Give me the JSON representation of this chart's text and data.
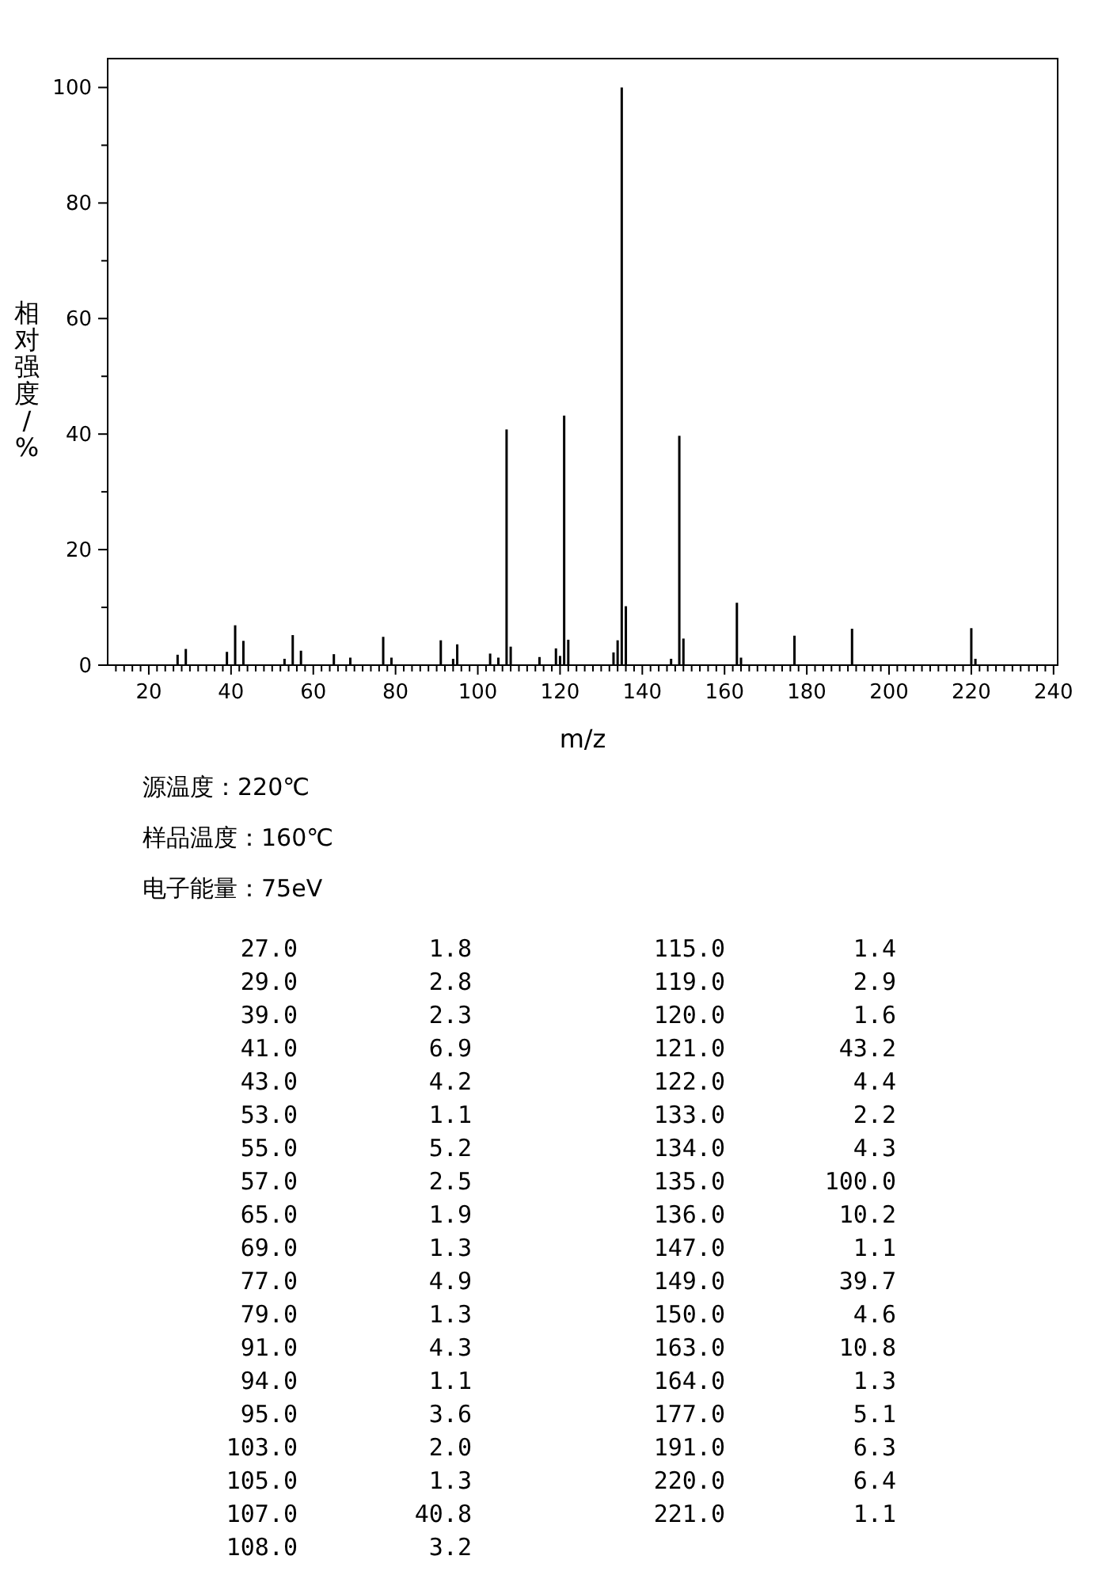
{
  "chart_data": [
    {
      "type": "bar",
      "color": "#000000",
      "xlabel": "m/z",
      "ylabel": "相对强度/%",
      "x": [
        27,
        29,
        39,
        41,
        43,
        53,
        55,
        57,
        65,
        69,
        77,
        79,
        91,
        94,
        95,
        103,
        105,
        107,
        108,
        115,
        119,
        120,
        121,
        122,
        133,
        134,
        135,
        136,
        147,
        149,
        150,
        163,
        164,
        177,
        191,
        220,
        221
      ],
      "values": [
        1.8,
        2.8,
        2.3,
        6.9,
        4.2,
        1.1,
        5.2,
        2.5,
        1.9,
        1.3,
        4.9,
        1.3,
        4.3,
        1.1,
        3.6,
        2.0,
        1.3,
        40.8,
        3.2,
        1.4,
        2.9,
        1.6,
        43.2,
        4.4,
        2.2,
        4.3,
        100.0,
        10.2,
        1.1,
        39.7,
        4.6,
        10.8,
        1.3,
        5.1,
        6.3,
        6.4,
        1.1
      ],
      "xlim": [
        10,
        241
      ],
      "ylim": [
        0,
        105
      ],
      "xticks": [
        {
          "value": 12,
          "label": null
        },
        {
          "value": 14,
          "label": null
        },
        {
          "value": 16,
          "label": null
        },
        {
          "value": 18,
          "label": null
        },
        20,
        {
          "value": 22,
          "label": null
        },
        {
          "value": 24,
          "label": null
        },
        {
          "value": 26,
          "label": null
        },
        {
          "value": 28,
          "label": null
        },
        {
          "value": 30,
          "label": null
        },
        {
          "value": 32,
          "label": null
        },
        {
          "value": 34,
          "label": null
        },
        {
          "value": 36,
          "label": null
        },
        {
          "value": 38,
          "label": null
        },
        40,
        {
          "value": 42,
          "label": null
        },
        {
          "value": 44,
          "label": null
        },
        {
          "value": 46,
          "label": null
        },
        {
          "value": 48,
          "label": null
        },
        {
          "value": 50,
          "label": null
        },
        {
          "value": 52,
          "label": null
        },
        {
          "value": 54,
          "label": null
        },
        {
          "value": 56,
          "label": null
        },
        {
          "value": 58,
          "label": null
        },
        60,
        {
          "value": 62,
          "label": null
        },
        {
          "value": 64,
          "label": null
        },
        {
          "value": 66,
          "label": null
        },
        {
          "value": 68,
          "label": null
        },
        {
          "value": 70,
          "label": null
        },
        {
          "value": 72,
          "label": null
        },
        {
          "value": 74,
          "label": null
        },
        {
          "value": 76,
          "label": null
        },
        {
          "value": 78,
          "label": null
        },
        80,
        {
          "value": 82,
          "label": null
        },
        {
          "value": 84,
          "label": null
        },
        {
          "value": 86,
          "label": null
        },
        {
          "value": 88,
          "label": null
        },
        {
          "value": 90,
          "label": null
        },
        {
          "value": 92,
          "label": null
        },
        {
          "value": 94,
          "label": null
        },
        {
          "value": 96,
          "label": null
        },
        {
          "value": 98,
          "label": null
        },
        100,
        {
          "value": 102,
          "label": null
        },
        {
          "value": 104,
          "label": null
        },
        {
          "value": 106,
          "label": null
        },
        {
          "value": 108,
          "label": null
        },
        {
          "value": 110,
          "label": null
        },
        {
          "value": 112,
          "label": null
        },
        {
          "value": 114,
          "label": null
        },
        {
          "value": 116,
          "label": null
        },
        {
          "value": 118,
          "label": null
        },
        120,
        {
          "value": 122,
          "label": null
        },
        {
          "value": 124,
          "label": null
        },
        {
          "value": 126,
          "label": null
        },
        {
          "value": 128,
          "label": null
        },
        {
          "value": 130,
          "label": null
        },
        {
          "value": 132,
          "label": null
        },
        {
          "value": 134,
          "label": null
        },
        {
          "value": 136,
          "label": null
        },
        {
          "value": 138,
          "label": null
        },
        140,
        {
          "value": 142,
          "label": null
        },
        {
          "value": 144,
          "label": null
        },
        {
          "value": 146,
          "label": null
        },
        {
          "value": 148,
          "label": null
        },
        {
          "value": 150,
          "label": null
        },
        {
          "value": 152,
          "label": null
        },
        {
          "value": 154,
          "label": null
        },
        {
          "value": 156,
          "label": null
        },
        {
          "value": 158,
          "label": null
        },
        160,
        {
          "value": 162,
          "label": null
        },
        {
          "value": 164,
          "label": null
        },
        {
          "value": 166,
          "label": null
        },
        {
          "value": 168,
          "label": null
        },
        {
          "value": 170,
          "label": null
        },
        {
          "value": 172,
          "label": null
        },
        {
          "value": 174,
          "label": null
        },
        {
          "value": 176,
          "label": null
        },
        {
          "value": 178,
          "label": null
        },
        180,
        {
          "value": 182,
          "label": null
        },
        {
          "value": 184,
          "label": null
        },
        {
          "value": 186,
          "label": null
        },
        {
          "value": 188,
          "label": null
        },
        {
          "value": 190,
          "label": null
        },
        {
          "value": 192,
          "label": null
        },
        {
          "value": 194,
          "label": null
        },
        {
          "value": 196,
          "label": null
        },
        {
          "value": 198,
          "label": null
        },
        200,
        {
          "value": 202,
          "label": null
        },
        {
          "value": 204,
          "label": null
        },
        {
          "value": 206,
          "label": null
        },
        {
          "value": 208,
          "label": null
        },
        {
          "value": 210,
          "label": null
        },
        {
          "value": 212,
          "label": null
        },
        {
          "value": 214,
          "label": null
        },
        {
          "value": 216,
          "label": null
        },
        {
          "value": 218,
          "label": null
        },
        220,
        {
          "value": 222,
          "label": null
        },
        {
          "value": 224,
          "label": null
        },
        {
          "value": 226,
          "label": null
        },
        {
          "value": 228,
          "label": null
        },
        {
          "value": 230,
          "label": null
        },
        {
          "value": 232,
          "label": null
        },
        {
          "value": 234,
          "label": null
        },
        {
          "value": 236,
          "label": null
        },
        {
          "value": 238,
          "label": null
        },
        240
      ],
      "yticks": [
        0,
        {
          "value": 10,
          "label": null
        },
        20,
        {
          "value": 30,
          "label": null
        },
        40,
        {
          "value": 50,
          "label": null
        },
        60,
        {
          "value": 70,
          "label": null
        },
        80,
        {
          "value": 90,
          "label": null
        },
        100
      ],
      "annotations": [
        "源温度：220℃",
        "样品温度：160℃",
        "电子能量：75eV"
      ]
    },
    {
      "type": "other",
      "categories": [
        "27.0",
        "29.0",
        "39.0",
        "41.0",
        "43.0",
        "53.0",
        "55.0",
        "57.0",
        "65.0",
        "69.0",
        "77.0",
        "79.0",
        "91.0",
        "94.0",
        "95.0",
        "103.0",
        "105.0",
        "107.0",
        "108.0",
        "115.0",
        "119.0",
        "120.0",
        "121.0",
        "122.0",
        "133.0",
        "134.0",
        "135.0",
        "136.0",
        "147.0",
        "149.0",
        "150.0",
        "163.0",
        "164.0",
        "177.0",
        "191.0",
        "220.0",
        "221.0"
      ],
      "value_labels": [
        "1.8",
        "2.8",
        "2.3",
        "6.9",
        "4.2",
        "1.1",
        "5.2",
        "2.5",
        "1.9",
        "1.3",
        "4.9",
        "1.3",
        "4.3",
        "1.1",
        "3.6",
        "2.0",
        "1.3",
        "40.8",
        "3.2",
        "1.4",
        "2.9",
        "1.6",
        "43.2",
        "4.4",
        "2.2",
        "4.3",
        "100.0",
        "10.2",
        "1.1",
        "39.7",
        "4.6",
        "10.8",
        "1.3",
        "5.1",
        "6.3",
        "6.4",
        "1.1"
      ]
    }
  ]
}
